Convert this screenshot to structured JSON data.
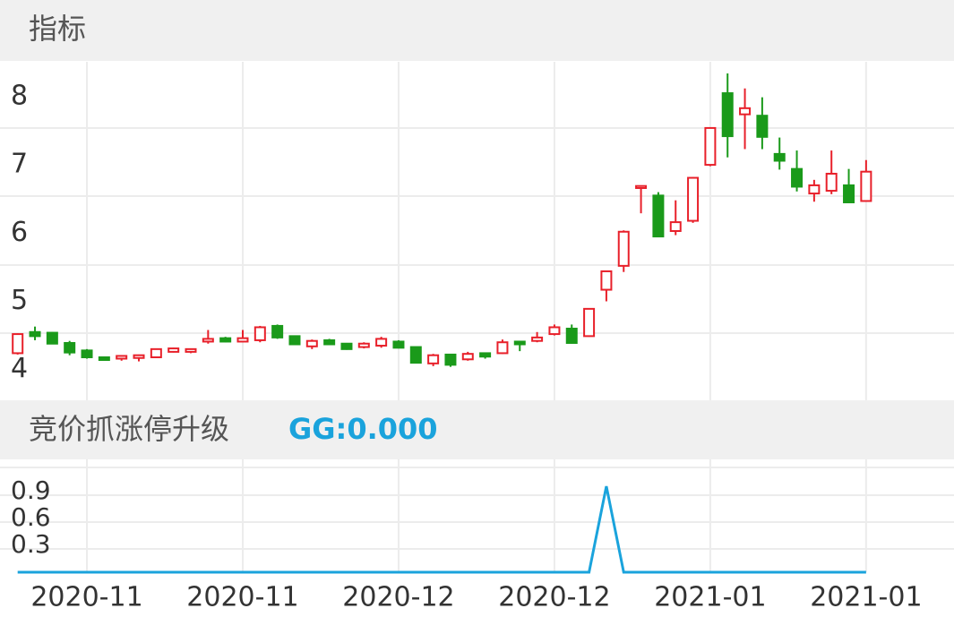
{
  "chart_data": [
    {
      "type": "candlestick",
      "title": "指标",
      "open": [
        4.24,
        4.55,
        4.54,
        4.39,
        4.28,
        4.18,
        4.16,
        4.17,
        4.18,
        4.26,
        4.26,
        4.41,
        4.46,
        4.41,
        4.43,
        4.64,
        4.49,
        4.34,
        4.43,
        4.38,
        4.33,
        4.35,
        4.41,
        4.33,
        4.09,
        4.22,
        4.15,
        4.24,
        4.24,
        4.41,
        4.42,
        4.52,
        4.6,
        4.49,
        5.17,
        5.52,
        6.66,
        6.55,
        6.03,
        6.18,
        7.0,
        8.05,
        7.74,
        7.72,
        7.16,
        6.94,
        6.58,
        6.62,
        6.7,
        6.47
      ],
      "high": [
        4.53,
        4.63,
        4.55,
        4.42,
        4.3,
        4.18,
        4.2,
        4.22,
        4.31,
        4.32,
        4.31,
        4.58,
        4.48,
        4.58,
        4.64,
        4.66,
        4.5,
        4.44,
        4.45,
        4.39,
        4.4,
        4.48,
        4.43,
        4.33,
        4.23,
        4.23,
        4.26,
        4.24,
        4.44,
        4.41,
        4.55,
        4.66,
        4.66,
        4.89,
        5.44,
        6.04,
        6.69,
        6.6,
        6.48,
        6.82,
        7.54,
        8.34,
        8.12,
        7.99,
        7.4,
        7.21,
        6.78,
        7.21,
        6.94,
        7.07
      ],
      "low": [
        4.22,
        4.43,
        4.37,
        4.21,
        4.16,
        4.13,
        4.13,
        4.12,
        4.17,
        4.25,
        4.24,
        4.38,
        4.4,
        4.4,
        4.4,
        4.45,
        4.36,
        4.3,
        4.36,
        4.29,
        4.31,
        4.32,
        4.31,
        4.09,
        4.05,
        4.04,
        4.13,
        4.16,
        4.23,
        4.27,
        4.4,
        4.5,
        4.38,
        4.48,
        5.0,
        5.43,
        6.29,
        5.95,
        5.97,
        6.15,
        6.98,
        7.11,
        7.23,
        7.23,
        6.93,
        6.61,
        6.46,
        6.57,
        6.45,
        6.47
      ],
      "close": [
        4.52,
        4.49,
        4.38,
        4.25,
        4.18,
        4.14,
        4.2,
        4.21,
        4.3,
        4.31,
        4.3,
        4.45,
        4.41,
        4.46,
        4.62,
        4.47,
        4.37,
        4.42,
        4.37,
        4.3,
        4.38,
        4.45,
        4.32,
        4.1,
        4.21,
        4.07,
        4.23,
        4.19,
        4.4,
        4.37,
        4.47,
        4.62,
        4.39,
        4.89,
        5.44,
        6.02,
        6.69,
        5.95,
        6.16,
        6.81,
        7.54,
        7.42,
        7.83,
        7.41,
        7.06,
        6.68,
        6.7,
        6.87,
        6.45,
        6.9
      ],
      "up_color": "#e8202a",
      "down_color": "#1a9a1a",
      "ylim": [
        3.55,
        8.51
      ],
      "yticks": [
        4,
        5,
        6,
        7,
        8
      ]
    },
    {
      "type": "line",
      "title": "竞价抓涨停升级",
      "categories": [
        null,
        null,
        null,
        null,
        "2020-11",
        null,
        null,
        null,
        null,
        null,
        null,
        null,
        null,
        "2020-11",
        null,
        null,
        null,
        null,
        null,
        null,
        null,
        null,
        "2020-12",
        null,
        null,
        null,
        null,
        null,
        null,
        null,
        null,
        "2020-12",
        null,
        null,
        null,
        null,
        null,
        null,
        null,
        null,
        "2021-01",
        null,
        null,
        null,
        null,
        null,
        null,
        null,
        null,
        "2021-01"
      ],
      "series": [
        {
          "name": "GG:0.000",
          "color": "#1aa3dc",
          "values": [
            0,
            0,
            0,
            0,
            0,
            0,
            0,
            0,
            0,
            0,
            0,
            0,
            0,
            0,
            0,
            0,
            0,
            0,
            0,
            0,
            0,
            0,
            0,
            0,
            0,
            0,
            0,
            0,
            0,
            0,
            0,
            0,
            0,
            0,
            0.96,
            0,
            0,
            0,
            0,
            0,
            0,
            0,
            0,
            0,
            0,
            0,
            0,
            0,
            0,
            0
          ]
        }
      ],
      "ylim": [
        0,
        1.26
      ],
      "yticks": [
        0.3,
        0.6,
        0.9
      ]
    }
  ]
}
